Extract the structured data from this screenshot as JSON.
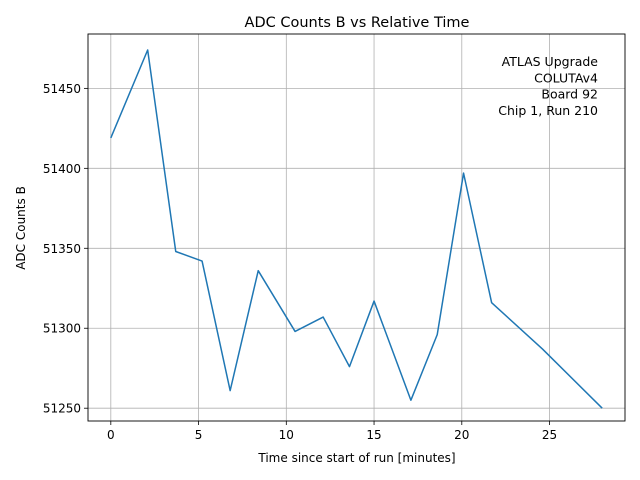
{
  "chart_data": {
    "type": "line",
    "title": "ADC Counts B vs Relative Time",
    "xlabel": "Time since start of run [minutes]",
    "ylabel": "ADC Counts B",
    "xlim": [
      -1.3,
      29.3
    ],
    "ylim": [
      51242,
      51484
    ],
    "xticks": [
      0,
      5,
      10,
      15,
      20,
      25
    ],
    "xtick_labels": [
      "0",
      "5",
      "10",
      "15",
      "20",
      "25"
    ],
    "yticks": [
      51250,
      51300,
      51350,
      51400,
      51450
    ],
    "ytick_labels": [
      "51250",
      "51300",
      "51350",
      "51400",
      "51450"
    ],
    "grid": true,
    "series": [
      {
        "color": "#1f77b4",
        "x": [
          0.0,
          2.1,
          3.7,
          5.2,
          6.8,
          8.4,
          10.5,
          12.1,
          13.6,
          15.0,
          17.1,
          18.6,
          20.1,
          21.7,
          24.6,
          28.0
        ],
        "y": [
          51419,
          51474,
          51348,
          51342,
          51261,
          51336,
          51298,
          51307,
          51276,
          51317,
          51255,
          51296,
          51397,
          51316,
          51287,
          51250
        ]
      }
    ],
    "annotation": {
      "lines": [
        "ATLAS Upgrade",
        "COLUTAv4",
        "Board 92",
        "Chip 1, Run 210"
      ],
      "position": "top-right"
    }
  }
}
